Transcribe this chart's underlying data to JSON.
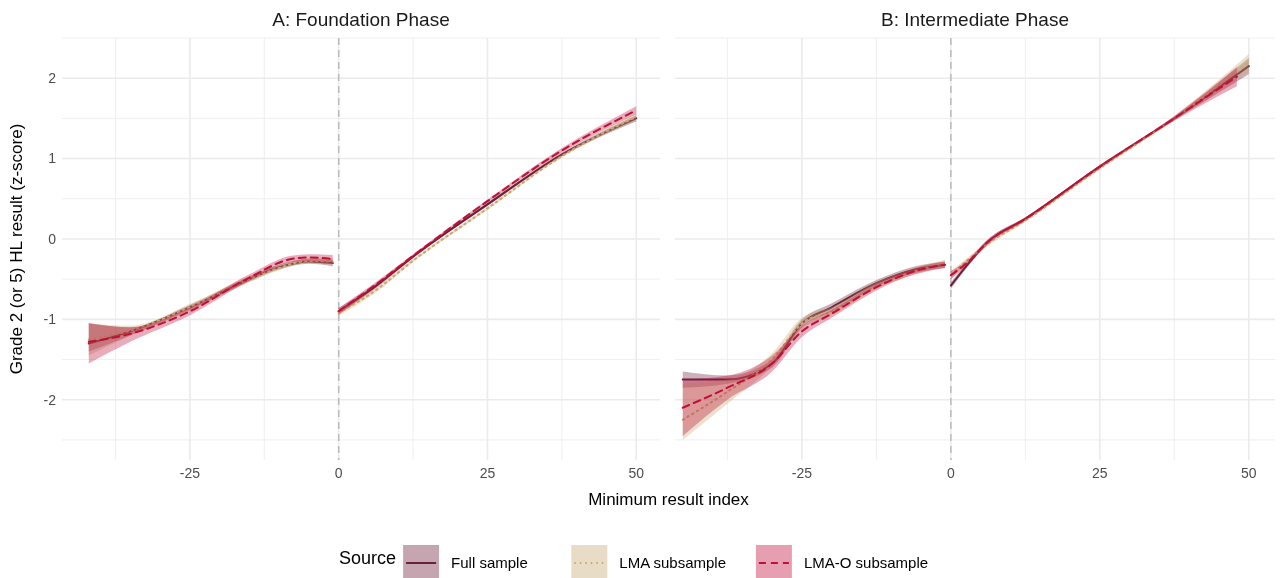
{
  "chart_data": [
    {
      "type": "line",
      "title": "A: Foundation Phase",
      "xlabel": "Minimum result index",
      "ylabel": "Grade 2 (or 5) HL result (z-score)",
      "legend_title": "Source",
      "legend": "bottom",
      "grid": true,
      "xlim": [
        -46.5,
        54
      ],
      "xticks": [
        {
          "value": -37.5,
          "label": null
        },
        -25,
        {
          "value": -12.5,
          "label": null
        },
        0,
        {
          "value": 12.5,
          "label": null
        },
        25,
        {
          "value": 37.5,
          "label": null
        },
        50
      ],
      "ylim": [
        -2.75,
        2.5
      ],
      "yticks": [
        {
          "value": -2.5,
          "label": null
        },
        -2,
        {
          "value": -1.5,
          "label": null
        },
        -1,
        {
          "value": -0.5,
          "label": null
        },
        0,
        {
          "value": 0.5,
          "label": null
        },
        1,
        {
          "value": 1.5,
          "label": null
        },
        2,
        {
          "value": 2.5,
          "label": null
        }
      ],
      "ref_lines": [
        {
          "axis": "x",
          "value": 0,
          "label": null,
          "color": "#bbbbbb",
          "line_style": "dashed"
        }
      ],
      "series": [
        {
          "name": "Full sample",
          "color": "#6b1f3a",
          "line_style": "solid",
          "x": [
            -42,
            -35,
            -25,
            -15,
            -10,
            -5,
            -1,
            -0.5,
            0,
            6,
            12.5,
            25,
            37.5,
            50
          ],
          "values": [
            -1.3,
            -1.15,
            -0.85,
            -0.5,
            -0.35,
            -0.28,
            -0.3,
            null,
            -0.9,
            -0.6,
            -0.22,
            0.43,
            1.05,
            1.5
          ],
          "lower": [
            -1.4,
            -1.2,
            -0.88,
            -0.53,
            -0.38,
            -0.31,
            -0.34,
            null,
            -0.94,
            -0.63,
            -0.24,
            0.41,
            1.03,
            1.46
          ],
          "upper": [
            -1.05,
            -1.1,
            -0.82,
            -0.47,
            -0.32,
            -0.25,
            -0.26,
            null,
            -0.86,
            -0.57,
            -0.2,
            0.45,
            1.07,
            1.54
          ]
        },
        {
          "name": "LMA subsample",
          "color": "#c8a870",
          "line_style": "dotted",
          "x": [
            -42,
            -35,
            -25,
            -15,
            -10,
            -5,
            -1,
            -0.5,
            0,
            6,
            12.5,
            25,
            37.5,
            50
          ],
          "values": [
            -1.25,
            -1.14,
            -0.85,
            -0.5,
            -0.36,
            -0.27,
            -0.28,
            null,
            -0.92,
            -0.65,
            -0.27,
            0.38,
            1.03,
            1.52
          ],
          "lower": [
            -1.45,
            -1.2,
            -0.89,
            -0.54,
            -0.39,
            -0.3,
            -0.32,
            null,
            -0.96,
            -0.68,
            -0.29,
            0.36,
            1.01,
            1.48
          ],
          "upper": [
            -1.05,
            -1.08,
            -0.81,
            -0.46,
            -0.33,
            -0.24,
            -0.24,
            null,
            -0.88,
            -0.62,
            -0.25,
            0.4,
            1.05,
            1.56
          ]
        },
        {
          "name": "LMA-O subsample",
          "color": "#c0103a",
          "line_style": "dashed",
          "x": [
            -42,
            -35,
            -25,
            -15,
            -8,
            -5,
            -1,
            -0.5,
            0,
            6,
            12.5,
            25,
            37.5,
            50
          ],
          "values": [
            -1.28,
            -1.18,
            -0.9,
            -0.48,
            -0.25,
            -0.23,
            -0.25,
            null,
            -0.9,
            -0.58,
            -0.21,
            0.47,
            1.1,
            1.6
          ],
          "lower": [
            -1.55,
            -1.28,
            -0.95,
            -0.52,
            -0.29,
            -0.27,
            -0.3,
            null,
            -0.94,
            -0.61,
            -0.23,
            0.45,
            1.07,
            1.55
          ],
          "upper": [
            -1.05,
            -1.1,
            -0.85,
            -0.44,
            -0.21,
            -0.19,
            -0.2,
            null,
            -0.86,
            -0.55,
            -0.19,
            0.49,
            1.13,
            1.65
          ]
        }
      ]
    },
    {
      "type": "line",
      "title": "B: Intermediate Phase",
      "grid": true,
      "tick_labels": "x",
      "xlim": [
        -46.3,
        54.4
      ],
      "xticks": [
        {
          "value": -37.5,
          "label": null
        },
        -25,
        {
          "value": -12.5,
          "label": null
        },
        0,
        {
          "value": 12.5,
          "label": null
        },
        25,
        {
          "value": 37.5,
          "label": null
        },
        50
      ],
      "ylim": [
        -2.75,
        2.5
      ],
      "yticks": [
        {
          "value": -2.5,
          "label": null
        },
        -2,
        {
          "value": -1.5,
          "label": null
        },
        -1,
        {
          "value": -0.5,
          "label": null
        },
        0,
        {
          "value": 0.5,
          "label": null
        },
        1,
        {
          "value": 1.5,
          "label": null
        },
        2,
        {
          "value": 2.5,
          "label": null
        }
      ],
      "ref_lines": [
        {
          "axis": "x",
          "value": 0,
          "label": null,
          "color": "#bbbbbb",
          "line_style": "dashed"
        }
      ],
      "series": [
        {
          "color": "#6b1f3a",
          "line_style": "solid",
          "x": [
            -45,
            -37.5,
            -30,
            -25,
            -20,
            -12.5,
            -6,
            -1,
            -0.5,
            0,
            3,
            6,
            12.5,
            25,
            37.5,
            50
          ],
          "values": [
            -1.75,
            -1.75,
            -1.55,
            -1.05,
            -0.85,
            -0.55,
            -0.38,
            -0.32,
            null,
            -0.58,
            -0.3,
            -0.05,
            0.25,
            0.9,
            1.5,
            2.15
          ],
          "lower": [
            -1.85,
            -1.8,
            -1.6,
            -1.1,
            -0.9,
            -0.59,
            -0.42,
            -0.36,
            null,
            -0.62,
            -0.33,
            -0.08,
            0.23,
            0.88,
            1.48,
            2.05
          ],
          "upper": [
            -1.65,
            -1.7,
            -1.5,
            -1.0,
            -0.8,
            -0.51,
            -0.34,
            -0.28,
            null,
            -0.54,
            -0.27,
            -0.02,
            0.27,
            0.92,
            1.52,
            2.25
          ]
        },
        {
          "color": "#c8a870",
          "line_style": "dotted",
          "x": [
            -45,
            -37.5,
            -30,
            -25,
            -20,
            -12.5,
            -6,
            -1,
            -0.5,
            0,
            3,
            6,
            12.5,
            25,
            37.5,
            50
          ],
          "values": [
            -2.25,
            -1.9,
            -1.5,
            -1.05,
            -0.9,
            -0.58,
            -0.4,
            -0.3,
            null,
            -0.45,
            -0.25,
            -0.07,
            0.23,
            0.88,
            1.5,
            2.2
          ],
          "lower": [
            -2.5,
            -2.05,
            -1.58,
            -1.12,
            -0.95,
            -0.62,
            -0.44,
            -0.34,
            null,
            -0.5,
            -0.28,
            -0.1,
            0.21,
            0.86,
            1.47,
            2.08
          ],
          "upper": [
            -1.8,
            -1.75,
            -1.42,
            -0.98,
            -0.85,
            -0.54,
            -0.36,
            -0.26,
            null,
            -0.4,
            -0.22,
            -0.04,
            0.25,
            0.9,
            1.53,
            2.3
          ]
        },
        {
          "color": "#c0103a",
          "line_style": "dashed",
          "x": [
            -45,
            -37.5,
            -30,
            -25,
            -20,
            -12.5,
            -6,
            -1,
            -0.5,
            0,
            3,
            6,
            12.5,
            25,
            37.5,
            48
          ],
          "values": [
            -2.1,
            -1.85,
            -1.55,
            -1.15,
            -0.93,
            -0.6,
            -0.4,
            -0.32,
            null,
            -0.45,
            -0.28,
            -0.05,
            0.25,
            0.9,
            1.5,
            2.02
          ],
          "lower": [
            -2.45,
            -2.0,
            -1.65,
            -1.22,
            -0.98,
            -0.64,
            -0.44,
            -0.36,
            null,
            -0.5,
            -0.31,
            -0.08,
            0.23,
            0.88,
            1.47,
            1.9
          ],
          "upper": [
            -1.75,
            -1.7,
            -1.45,
            -1.08,
            -0.88,
            -0.56,
            -0.36,
            -0.28,
            null,
            -0.4,
            -0.25,
            -0.02,
            0.27,
            0.92,
            1.53,
            2.14
          ]
        }
      ]
    }
  ]
}
